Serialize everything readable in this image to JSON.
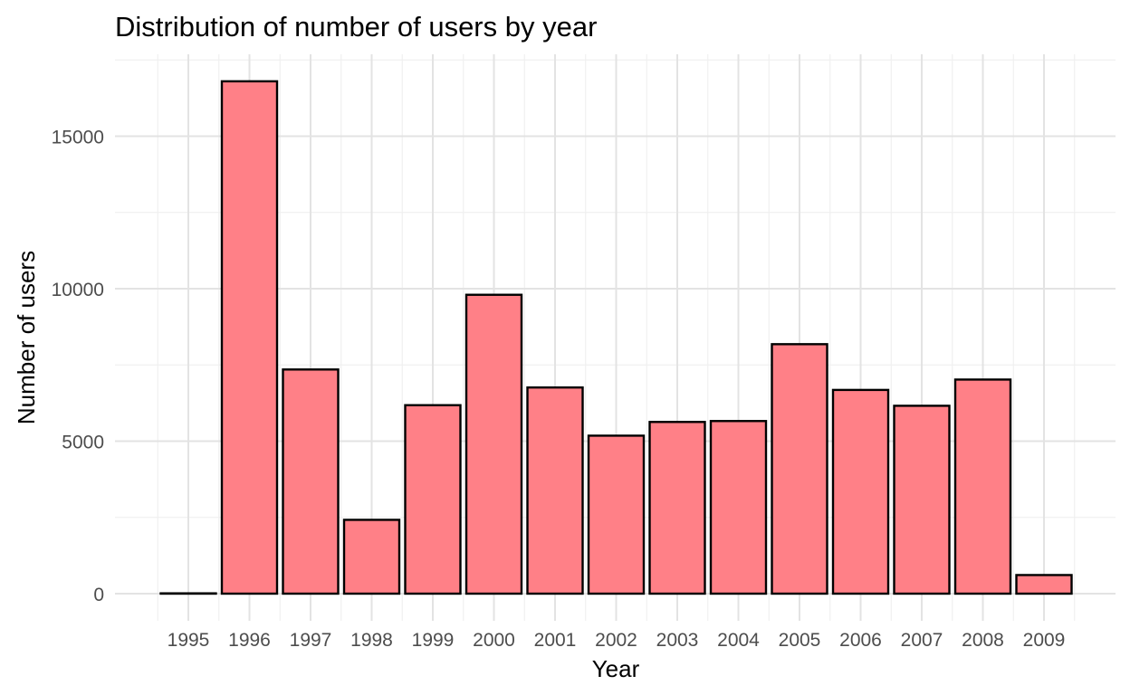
{
  "chart_data": {
    "type": "bar",
    "title": "Distribution of number of users by year",
    "xlabel": "Year",
    "ylabel": "Number of users",
    "categories": [
      "1995",
      "1996",
      "1997",
      "1998",
      "1999",
      "2000",
      "2001",
      "2002",
      "2003",
      "2004",
      "2005",
      "2006",
      "2007",
      "2008",
      "2009"
    ],
    "values": [
      10,
      16800,
      7350,
      2420,
      6180,
      9800,
      6760,
      5180,
      5630,
      5660,
      8180,
      6680,
      6160,
      7020,
      610
    ],
    "ylim": [
      0,
      17500
    ],
    "yticks": [
      0,
      5000,
      10000,
      15000
    ],
    "ytick_labels": [
      "0",
      "5000",
      "10000",
      "15000"
    ],
    "grid": true,
    "legend": "none",
    "colors": {
      "bar_fill": "#FF8087",
      "bar_stroke": "#000000",
      "grid": "#E3E3E3"
    }
  }
}
